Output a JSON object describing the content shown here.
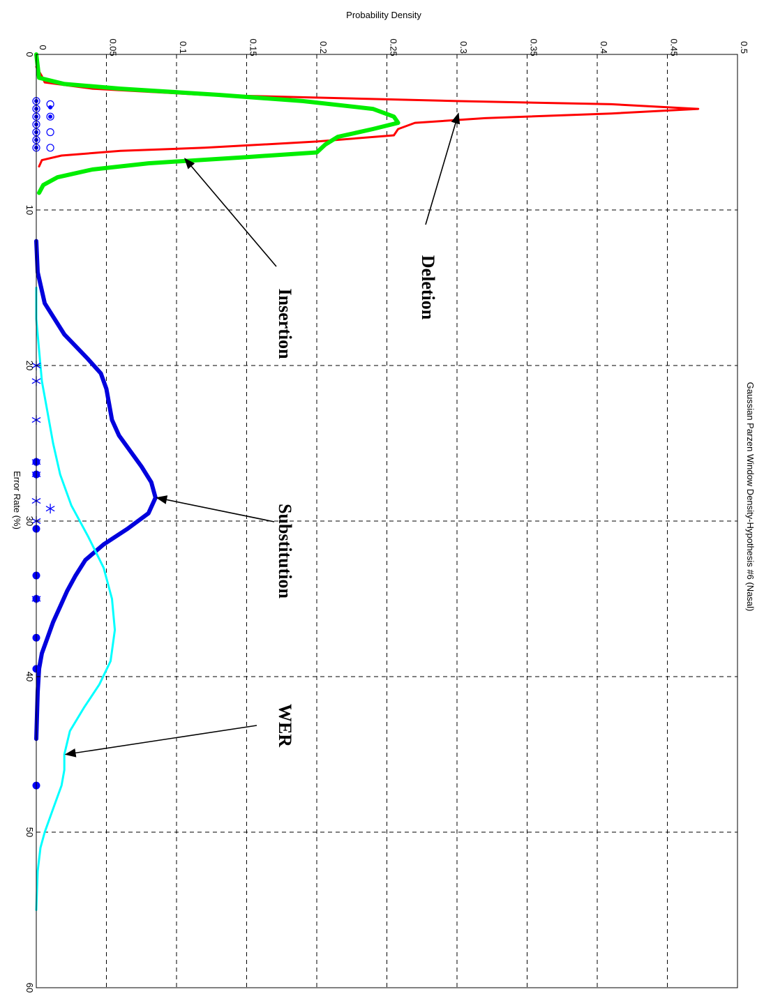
{
  "chart_data": {
    "type": "line",
    "title": "Gaussian Parzen Window Density-Hypothesis #6 (Nasal)",
    "xlabel": "Error Rate (%)",
    "ylabel": "Probability Density",
    "xlim": [
      0,
      60
    ],
    "ylim": [
      0,
      0.5
    ],
    "x_ticks": [
      "0",
      "10",
      "20",
      "30",
      "40",
      "50",
      "60"
    ],
    "y_ticks": [
      "0",
      "0.05",
      "0.1",
      "0.15",
      "0.2",
      "0.25",
      "0.3",
      "0.35",
      "0.4",
      "0.45",
      "0.5"
    ],
    "grid": true,
    "orientation": "rotated-90-clockwise",
    "series": [
      {
        "name": "Deletion",
        "color": "#ff0000",
        "points": [
          [
            0.8,
            0
          ],
          [
            1.4,
            0.004
          ],
          [
            1.8,
            0.006
          ],
          [
            2.2,
            0.04
          ],
          [
            2.6,
            0.12
          ],
          [
            3.0,
            0.3
          ],
          [
            3.2,
            0.41
          ],
          [
            3.5,
            0.472
          ],
          [
            3.8,
            0.41
          ],
          [
            4.1,
            0.32
          ],
          [
            4.4,
            0.27
          ],
          [
            4.8,
            0.258
          ],
          [
            5.2,
            0.255
          ],
          [
            5.6,
            0.2
          ],
          [
            6.0,
            0.12
          ],
          [
            6.2,
            0.06
          ],
          [
            6.5,
            0.018
          ],
          [
            6.8,
            0.004
          ],
          [
            7.2,
            0.002
          ]
        ]
      },
      {
        "name": "Insertion",
        "color": "#00ee00",
        "points": [
          [
            0,
            0
          ],
          [
            1.5,
            0.002
          ],
          [
            1.9,
            0.02
          ],
          [
            2.2,
            0.06
          ],
          [
            2.6,
            0.13
          ],
          [
            3.0,
            0.19
          ],
          [
            3.5,
            0.24
          ],
          [
            4.0,
            0.255
          ],
          [
            4.4,
            0.258
          ],
          [
            4.8,
            0.24
          ],
          [
            5.3,
            0.215
          ],
          [
            5.8,
            0.206
          ],
          [
            6.3,
            0.2
          ],
          [
            6.6,
            0.15
          ],
          [
            7.0,
            0.08
          ],
          [
            7.4,
            0.04
          ],
          [
            7.9,
            0.015
          ],
          [
            8.4,
            0.005
          ],
          [
            8.9,
            0.002
          ]
        ]
      },
      {
        "name": "Substitution",
        "color": "#0000dd",
        "points": [
          [
            12,
            0
          ],
          [
            14,
            0.001
          ],
          [
            16,
            0.006
          ],
          [
            18,
            0.02
          ],
          [
            19.5,
            0.036
          ],
          [
            20.5,
            0.046
          ],
          [
            21.5,
            0.05
          ],
          [
            22.5,
            0.052
          ],
          [
            23.5,
            0.054
          ],
          [
            24.5,
            0.059
          ],
          [
            25.5,
            0.067
          ],
          [
            26.5,
            0.075
          ],
          [
            27.5,
            0.082
          ],
          [
            28.5,
            0.085
          ],
          [
            29.5,
            0.08
          ],
          [
            30.5,
            0.065
          ],
          [
            31.5,
            0.048
          ],
          [
            32.5,
            0.035
          ],
          [
            33.5,
            0.028
          ],
          [
            34.5,
            0.022
          ],
          [
            35.5,
            0.017
          ],
          [
            36.5,
            0.012
          ],
          [
            37.5,
            0.008
          ],
          [
            38.5,
            0.004
          ],
          [
            39.5,
            0.002
          ],
          [
            41,
            0.001
          ],
          [
            44,
            0
          ]
        ]
      },
      {
        "name": "WER",
        "color": "#00ffff",
        "points": [
          [
            15,
            0
          ],
          [
            17,
            0
          ],
          [
            19,
            0.002
          ],
          [
            21,
            0.004
          ],
          [
            23,
            0.008
          ],
          [
            25,
            0.012
          ],
          [
            27,
            0.017
          ],
          [
            29,
            0.025
          ],
          [
            31,
            0.037
          ],
          [
            33,
            0.048
          ],
          [
            35,
            0.054
          ],
          [
            37,
            0.056
          ],
          [
            39,
            0.053
          ],
          [
            40.5,
            0.045
          ],
          [
            42,
            0.034
          ],
          [
            43.5,
            0.024
          ],
          [
            45,
            0.02
          ],
          [
            46,
            0.02
          ],
          [
            47,
            0.018
          ],
          [
            48.5,
            0.012
          ],
          [
            50,
            0.006
          ],
          [
            51,
            0.003
          ],
          [
            52.5,
            0.001
          ],
          [
            55,
            0
          ]
        ]
      }
    ],
    "markers": [
      {
        "symbol": "circle-open",
        "color": "#0000ff",
        "points": [
          [
            3.0,
            0
          ],
          [
            3.5,
            0
          ],
          [
            4.0,
            0
          ],
          [
            4.5,
            0
          ],
          [
            5.0,
            0
          ],
          [
            5.5,
            0
          ],
          [
            6.0,
            0
          ],
          [
            3.2,
            0.01
          ],
          [
            4.0,
            0.01
          ],
          [
            5.0,
            0.01
          ],
          [
            6.0,
            0.01
          ]
        ]
      },
      {
        "symbol": "dot-small",
        "color": "#0000ff",
        "points": [
          [
            3.0,
            0
          ],
          [
            3.5,
            0
          ],
          [
            4.0,
            0
          ],
          [
            4.5,
            0
          ],
          [
            5.0,
            0
          ],
          [
            5.5,
            0
          ],
          [
            6.0,
            0
          ],
          [
            3.4,
            0.01
          ],
          [
            4.0,
            0.01
          ]
        ]
      },
      {
        "symbol": "star",
        "color": "#0000ff",
        "points": [
          [
            20,
            0
          ],
          [
            21,
            0
          ],
          [
            23.5,
            0
          ],
          [
            26.2,
            0
          ],
          [
            27,
            0
          ],
          [
            28.7,
            0
          ],
          [
            29.2,
            0.01
          ],
          [
            30,
            0
          ],
          [
            35,
            0
          ]
        ]
      },
      {
        "symbol": "dot-large",
        "color": "#0000ff",
        "points": [
          [
            26.2,
            0
          ],
          [
            27,
            0
          ],
          [
            30.5,
            0
          ],
          [
            33.5,
            0
          ],
          [
            35,
            0
          ],
          [
            37.5,
            0
          ],
          [
            39.5,
            0
          ],
          [
            47,
            0
          ]
        ]
      }
    ],
    "annotations": [
      {
        "text": "Deletion",
        "x": 3.8,
        "y": 0.3
      },
      {
        "text": "Insertion",
        "x": 6.7,
        "y": 0.105
      },
      {
        "text": "Substitution",
        "x": 28.5,
        "y": 0.085
      },
      {
        "text": "WER",
        "x": 45,
        "y": 0.02
      }
    ]
  }
}
